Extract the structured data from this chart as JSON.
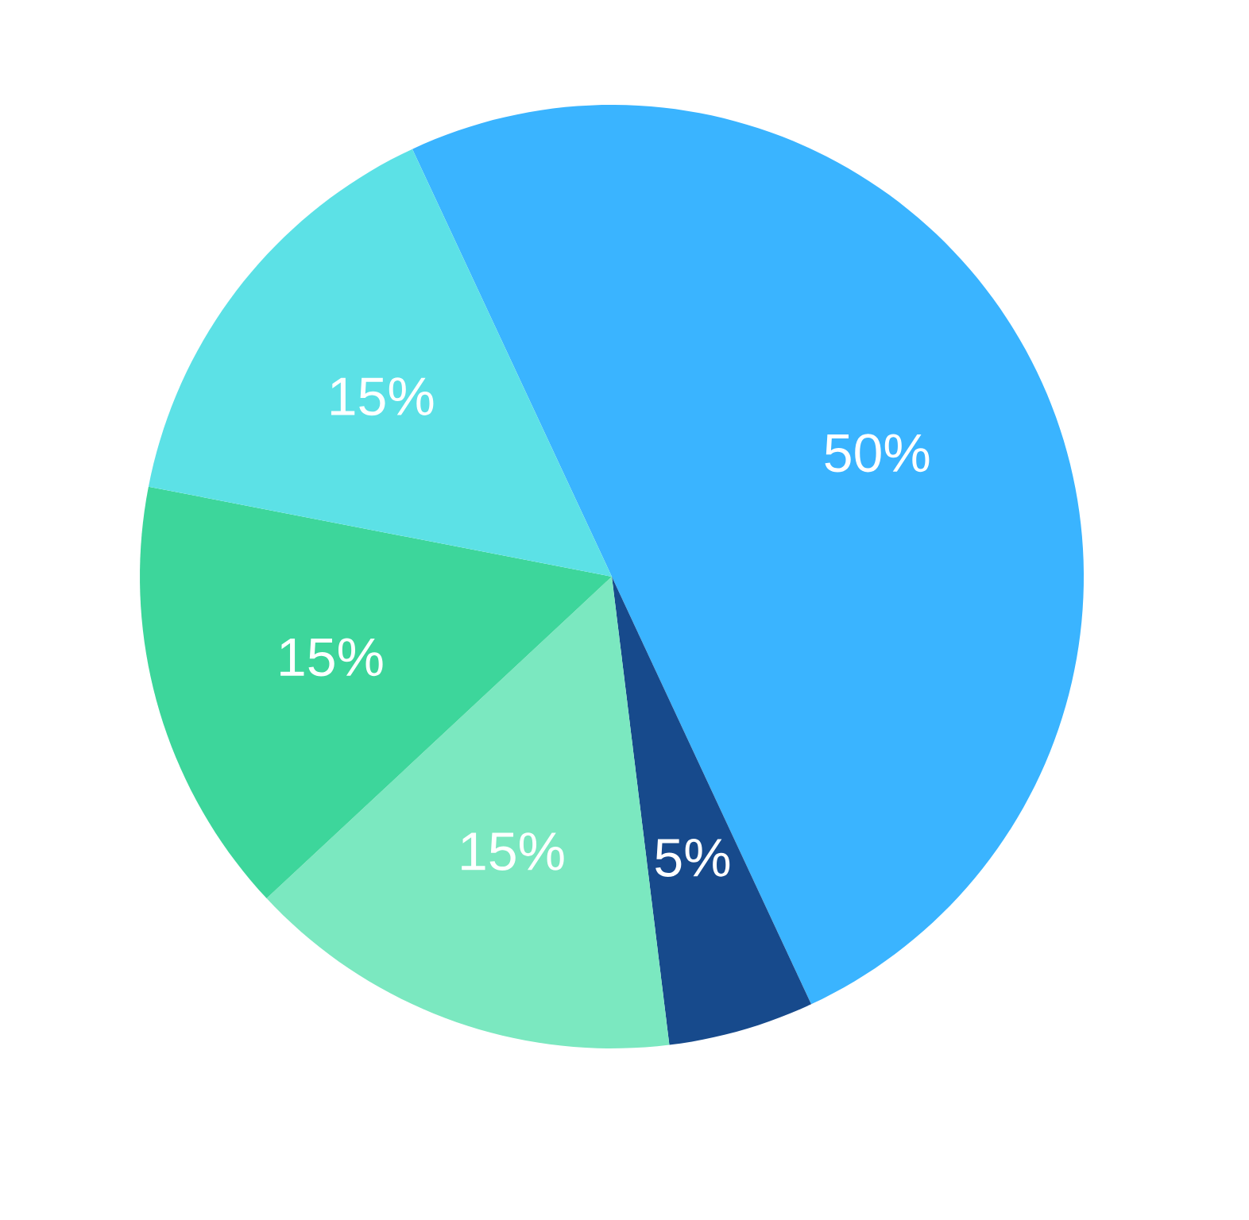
{
  "chart_data": {
    "type": "pie",
    "categories": [
      null,
      null,
      null,
      null,
      null
    ],
    "values": [
      50,
      5,
      15,
      15,
      15
    ],
    "value_labels": [
      "50%",
      "5%",
      "15%",
      "15%",
      "15%"
    ],
    "colors": [
      "#3ab4ff",
      "#174a8c",
      "#7be8c0",
      "#3dd69b",
      "#5ce1e6"
    ]
  }
}
